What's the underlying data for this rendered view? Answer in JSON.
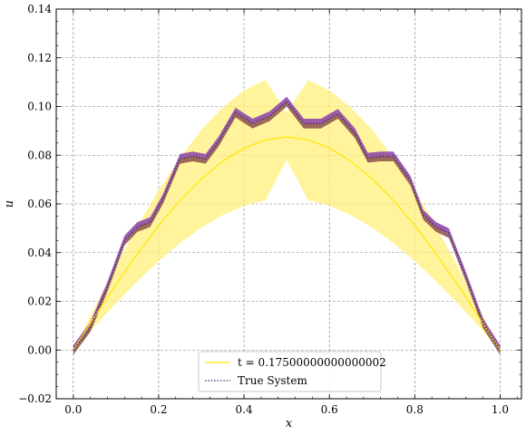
{
  "chart_data": {
    "type": "line",
    "xlabel": "x",
    "ylabel": "u",
    "xlim": [
      -0.04,
      1.05
    ],
    "ylim": [
      -0.02,
      0.14
    ],
    "xticks": [
      0.0,
      0.2,
      0.4,
      0.6,
      0.8,
      1.0
    ],
    "xtick_labels": [
      "0.0",
      "0.2",
      "0.4",
      "0.6",
      "0.8",
      "1.0"
    ],
    "yticks": [
      -0.02,
      0.0,
      0.02,
      0.04,
      0.06,
      0.08,
      0.1,
      0.12,
      0.14
    ],
    "ytick_labels": [
      "−0.02",
      "0.00",
      "0.02",
      "0.04",
      "0.06",
      "0.08",
      "0.10",
      "0.12",
      "0.14"
    ],
    "grid": true,
    "legend_position": "bottom-center",
    "series": [
      {
        "name": "t = 0.17500000000000002",
        "style": "solid",
        "color": "#ffe600",
        "band_color": "#fff07a",
        "x": [
          0.0,
          0.05,
          0.1,
          0.15,
          0.2,
          0.25,
          0.3,
          0.35,
          0.4,
          0.45,
          0.5,
          0.55,
          0.6,
          0.65,
          0.7,
          0.75,
          0.8,
          0.85,
          0.9,
          0.95,
          1.0
        ],
        "y": [
          0.0,
          0.0136,
          0.0269,
          0.0395,
          0.0511,
          0.0615,
          0.0703,
          0.0775,
          0.0829,
          0.0863,
          0.0875,
          0.0863,
          0.0829,
          0.0775,
          0.0703,
          0.0615,
          0.0511,
          0.0395,
          0.0269,
          0.0136,
          0.0
        ],
        "y_lower": [
          0.0,
          0.0097,
          0.0192,
          0.0282,
          0.0365,
          0.0439,
          0.0503,
          0.0554,
          0.0592,
          0.0616,
          0.078,
          0.0616,
          0.0592,
          0.0554,
          0.0503,
          0.0439,
          0.0365,
          0.0282,
          0.0192,
          0.0097,
          0.0
        ],
        "y_upper": [
          0.0,
          0.0175,
          0.0346,
          0.0508,
          0.0657,
          0.079,
          0.0904,
          0.0996,
          0.1066,
          0.1109,
          0.0975,
          0.1109,
          0.1066,
          0.0996,
          0.0904,
          0.079,
          0.0657,
          0.0508,
          0.0346,
          0.0175,
          0.0
        ]
      },
      {
        "name": "True System",
        "style": "dotted",
        "color": "#2b1a6e",
        "band_upper_color": "#8b3fa8",
        "band_lower_color": "#8a4f4f",
        "x": [
          0.0,
          0.04,
          0.08,
          0.12,
          0.15,
          0.18,
          0.21,
          0.25,
          0.28,
          0.31,
          0.34,
          0.38,
          0.42,
          0.46,
          0.5,
          0.54,
          0.58,
          0.62,
          0.66,
          0.69,
          0.72,
          0.75,
          0.79,
          0.82,
          0.85,
          0.88,
          0.92,
          0.96,
          1.0
        ],
        "y": [
          0.0,
          0.0095,
          0.026,
          0.045,
          0.0505,
          0.0525,
          0.062,
          0.0785,
          0.0795,
          0.0785,
          0.0855,
          0.0975,
          0.093,
          0.096,
          0.102,
          0.093,
          0.093,
          0.097,
          0.089,
          0.079,
          0.0795,
          0.0795,
          0.0695,
          0.0555,
          0.0505,
          0.048,
          0.03,
          0.011,
          0.0
        ],
        "half_width": 0.002
      }
    ]
  }
}
